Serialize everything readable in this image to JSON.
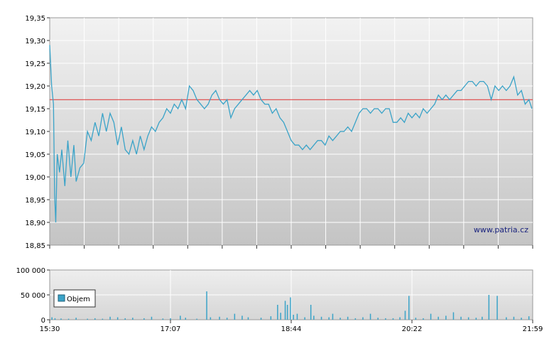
{
  "colors": {
    "price_line": "#3aa3c8",
    "volume_bar": "#3aa3c8",
    "reference_line": "#e03030",
    "grid": "#ffffff",
    "plot_bg_top": "#f2f2f2",
    "plot_bg_bottom": "#c4c4c4",
    "legend_swatch": "#3aa3c8"
  },
  "watermark": "www.patria.cz",
  "legend": {
    "label": "Objem"
  },
  "chart_data": [
    {
      "type": "line",
      "title": "",
      "xlabel": "",
      "ylabel": "",
      "ylim": [
        18.85,
        19.35
      ],
      "y_ticks": [
        "19,35",
        "19,30",
        "19,25",
        "19,20",
        "19,15",
        "19,10",
        "19,05",
        "19,00",
        "18,95",
        "18,90",
        "18,85"
      ],
      "reference_value": 19.17,
      "series": [
        {
          "values": [
            [
              0,
              19.29
            ],
            [
              0.25,
              19.2
            ],
            [
              0.5,
              19.16
            ],
            [
              0.65,
              18.96
            ],
            [
              0.8,
              18.9
            ],
            [
              1,
              19.05
            ],
            [
              1.3,
              19.01
            ],
            [
              1.6,
              19.06
            ],
            [
              2,
              18.98
            ],
            [
              2.4,
              19.08
            ],
            [
              2.8,
              19.0
            ],
            [
              3.2,
              19.07
            ],
            [
              3.5,
              18.99
            ],
            [
              4,
              19.02
            ],
            [
              4.5,
              19.03
            ],
            [
              5,
              19.1
            ],
            [
              5.5,
              19.08
            ],
            [
              6,
              19.12
            ],
            [
              6.5,
              19.09
            ],
            [
              7,
              19.14
            ],
            [
              7.5,
              19.1
            ],
            [
              8,
              19.14
            ],
            [
              8.5,
              19.12
            ],
            [
              9,
              19.07
            ],
            [
              9.5,
              19.11
            ],
            [
              10,
              19.06
            ],
            [
              10.5,
              19.05
            ],
            [
              11,
              19.08
            ],
            [
              11.5,
              19.05
            ],
            [
              12,
              19.09
            ],
            [
              12.5,
              19.06
            ],
            [
              13,
              19.09
            ],
            [
              13.5,
              19.11
            ],
            [
              14,
              19.1
            ],
            [
              14.5,
              19.12
            ],
            [
              15,
              19.13
            ],
            [
              15.5,
              19.15
            ],
            [
              16,
              19.14
            ],
            [
              16.5,
              19.16
            ],
            [
              17,
              19.15
            ],
            [
              17.5,
              19.17
            ],
            [
              18,
              19.15
            ],
            [
              18.5,
              19.2
            ],
            [
              19,
              19.19
            ],
            [
              19.5,
              19.17
            ],
            [
              20,
              19.16
            ],
            [
              20.5,
              19.15
            ],
            [
              21,
              19.16
            ],
            [
              21.5,
              19.18
            ],
            [
              22,
              19.19
            ],
            [
              22.5,
              19.17
            ],
            [
              23,
              19.16
            ],
            [
              23.5,
              19.17
            ],
            [
              24,
              19.13
            ],
            [
              24.5,
              19.15
            ],
            [
              25,
              19.16
            ],
            [
              25.5,
              19.17
            ],
            [
              26,
              19.18
            ],
            [
              26.5,
              19.19
            ],
            [
              27,
              19.18
            ],
            [
              27.5,
              19.19
            ],
            [
              28,
              19.17
            ],
            [
              28.5,
              19.16
            ],
            [
              29,
              19.16
            ],
            [
              29.5,
              19.14
            ],
            [
              30,
              19.15
            ],
            [
              30.5,
              19.13
            ],
            [
              31,
              19.12
            ],
            [
              31.5,
              19.1
            ],
            [
              32,
              19.08
            ],
            [
              32.5,
              19.07
            ],
            [
              33,
              19.07
            ],
            [
              33.5,
              19.06
            ],
            [
              34,
              19.07
            ],
            [
              34.5,
              19.06
            ],
            [
              35,
              19.07
            ],
            [
              35.5,
              19.08
            ],
            [
              36,
              19.08
            ],
            [
              36.5,
              19.07
            ],
            [
              37,
              19.09
            ],
            [
              37.5,
              19.08
            ],
            [
              38,
              19.09
            ],
            [
              38.5,
              19.1
            ],
            [
              39,
              19.1
            ],
            [
              39.5,
              19.11
            ],
            [
              40,
              19.1
            ],
            [
              40.5,
              19.12
            ],
            [
              41,
              19.14
            ],
            [
              41.5,
              19.15
            ],
            [
              42,
              19.15
            ],
            [
              42.5,
              19.14
            ],
            [
              43,
              19.15
            ],
            [
              43.5,
              19.15
            ],
            [
              44,
              19.14
            ],
            [
              44.5,
              19.15
            ],
            [
              45,
              19.15
            ],
            [
              45.5,
              19.12
            ],
            [
              46,
              19.12
            ],
            [
              46.5,
              19.13
            ],
            [
              47,
              19.12
            ],
            [
              47.5,
              19.14
            ],
            [
              48,
              19.13
            ],
            [
              48.5,
              19.14
            ],
            [
              49,
              19.13
            ],
            [
              49.5,
              19.15
            ],
            [
              50,
              19.14
            ],
            [
              50.5,
              19.15
            ],
            [
              51,
              19.16
            ],
            [
              51.5,
              19.18
            ],
            [
              52,
              19.17
            ],
            [
              52.5,
              19.18
            ],
            [
              53,
              19.17
            ],
            [
              53.5,
              19.18
            ],
            [
              54,
              19.19
            ],
            [
              54.5,
              19.19
            ],
            [
              55,
              19.2
            ],
            [
              55.5,
              19.21
            ],
            [
              56,
              19.21
            ],
            [
              56.5,
              19.2
            ],
            [
              57,
              19.21
            ],
            [
              57.5,
              19.21
            ],
            [
              58,
              19.2
            ],
            [
              58.5,
              19.17
            ],
            [
              59,
              19.2
            ],
            [
              59.5,
              19.19
            ],
            [
              60,
              19.2
            ],
            [
              60.5,
              19.19
            ],
            [
              61,
              19.2
            ],
            [
              61.5,
              19.22
            ],
            [
              62,
              19.18
            ],
            [
              62.5,
              19.19
            ],
            [
              63,
              19.16
            ],
            [
              63.5,
              19.17
            ],
            [
              63.9,
              19.15
            ]
          ]
        }
      ]
    },
    {
      "type": "bar",
      "title": "",
      "xlabel": "",
      "ylabel": "",
      "ylim": [
        0,
        100000
      ],
      "y_ticks": [
        "100 000",
        "50 000",
        "0"
      ],
      "x_ticks": [
        "15:30",
        "17:07",
        "18:44",
        "20:22",
        "21:59"
      ],
      "series": [
        {
          "name": "Objem",
          "values": [
            [
              0.3,
              5000
            ],
            [
              0.7,
              3000
            ],
            [
              1.5,
              2500
            ],
            [
              2.5,
              2000
            ],
            [
              3.5,
              4000
            ],
            [
              5,
              2000
            ],
            [
              6,
              3000
            ],
            [
              7,
              2000
            ],
            [
              8,
              6000
            ],
            [
              9,
              5000
            ],
            [
              10,
              3000
            ],
            [
              11,
              4000
            ],
            [
              12.5,
              3000
            ],
            [
              13.5,
              6000
            ],
            [
              15,
              2500
            ],
            [
              16,
              3000
            ],
            [
              17.3,
              8000
            ],
            [
              18,
              4000
            ],
            [
              19.5,
              2000
            ],
            [
              20.8,
              57000
            ],
            [
              21.3,
              5000
            ],
            [
              22.5,
              6000
            ],
            [
              23.5,
              4000
            ],
            [
              24.5,
              12000
            ],
            [
              25.5,
              8000
            ],
            [
              26.3,
              5000
            ],
            [
              28,
              4000
            ],
            [
              29.3,
              7000
            ],
            [
              30.2,
              30000
            ],
            [
              30.6,
              14000
            ],
            [
              31.2,
              38000
            ],
            [
              31.5,
              30000
            ],
            [
              31.9,
              45000
            ],
            [
              32.3,
              10000
            ],
            [
              32.8,
              12000
            ],
            [
              33.8,
              5000
            ],
            [
              34.6,
              30000
            ],
            [
              35,
              8000
            ],
            [
              36,
              6000
            ],
            [
              37,
              5000
            ],
            [
              37.5,
              12000
            ],
            [
              38.5,
              4000
            ],
            [
              39.5,
              6000
            ],
            [
              40.5,
              3000
            ],
            [
              41.5,
              5000
            ],
            [
              42.5,
              12000
            ],
            [
              43.5,
              4000
            ],
            [
              44.5,
              3000
            ],
            [
              45.5,
              3000
            ],
            [
              46.4,
              5000
            ],
            [
              47.1,
              18000
            ],
            [
              47.6,
              48000
            ],
            [
              48.5,
              4000
            ],
            [
              49.5,
              3000
            ],
            [
              50.5,
              12000
            ],
            [
              51.5,
              6000
            ],
            [
              52.5,
              8000
            ],
            [
              53.5,
              15000
            ],
            [
              54.5,
              6000
            ],
            [
              55.5,
              5000
            ],
            [
              56.5,
              4000
            ],
            [
              57.3,
              6000
            ],
            [
              58.2,
              50000
            ],
            [
              59.3,
              48000
            ],
            [
              60.5,
              5000
            ],
            [
              61.5,
              6000
            ],
            [
              62.5,
              4000
            ],
            [
              63.5,
              7000
            ]
          ]
        }
      ]
    }
  ]
}
